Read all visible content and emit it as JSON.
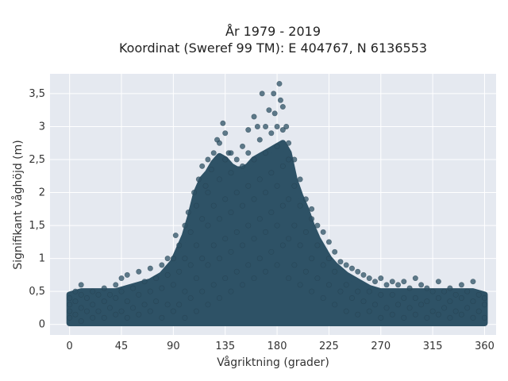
{
  "chart_data": {
    "type": "scatter",
    "title_lines": [
      "År 1979 - 2019",
      "Koordinat (Sweref 99 TM): E 404767, N 6136553"
    ],
    "xlabel": "Vågriktning (grader)",
    "ylabel": "Signifikant våghöjd (m)",
    "xlim": [
      -17,
      370
    ],
    "ylim": [
      -0.16,
      3.8
    ],
    "x_ticks": [
      0,
      45,
      90,
      135,
      180,
      225,
      270,
      315,
      360
    ],
    "x_tick_labels": [
      "0",
      "45",
      "90",
      "135",
      "180",
      "225",
      "270",
      "315",
      "360"
    ],
    "y_ticks": [
      0,
      0.5,
      1,
      1.5,
      2,
      2.5,
      3,
      3.5
    ],
    "y_tick_labels": [
      "0",
      "0,5",
      "1",
      "1,5",
      "2",
      "2,5",
      "3",
      "3,5"
    ],
    "grid": true,
    "legend": "none",
    "marker_color": "#2e5266",
    "plot_background": "#e5e9f0",
    "series": [
      {
        "points": [
          [
            0,
            0.1
          ],
          [
            0,
            0.2
          ],
          [
            0,
            0.3
          ],
          [
            0,
            0.4
          ],
          [
            5,
            0.15
          ],
          [
            5,
            0.35
          ],
          [
            5,
            0.5
          ],
          [
            10,
            0.05
          ],
          [
            10,
            0.25
          ],
          [
            10,
            0.45
          ],
          [
            10,
            0.6
          ],
          [
            15,
            0.2
          ],
          [
            15,
            0.4
          ],
          [
            20,
            0.1
          ],
          [
            20,
            0.3
          ],
          [
            20,
            0.5
          ],
          [
            25,
            0.2
          ],
          [
            25,
            0.45
          ],
          [
            30,
            0.1
          ],
          [
            30,
            0.35
          ],
          [
            30,
            0.55
          ],
          [
            35,
            0.25
          ],
          [
            35,
            0.45
          ],
          [
            40,
            0.15
          ],
          [
            40,
            0.4
          ],
          [
            40,
            0.6
          ],
          [
            45,
            0.2
          ],
          [
            45,
            0.5
          ],
          [
            45,
            0.7
          ],
          [
            50,
            0.1
          ],
          [
            50,
            0.35
          ],
          [
            50,
            0.75
          ],
          [
            55,
            0.25
          ],
          [
            55,
            0.55
          ],
          [
            60,
            0.15
          ],
          [
            60,
            0.45
          ],
          [
            60,
            0.8
          ],
          [
            65,
            0.3
          ],
          [
            65,
            0.65
          ],
          [
            70,
            0.2
          ],
          [
            70,
            0.5
          ],
          [
            70,
            0.85
          ],
          [
            75,
            0.35
          ],
          [
            75,
            0.7
          ],
          [
            80,
            0.1
          ],
          [
            80,
            0.55
          ],
          [
            80,
            0.9
          ],
          [
            85,
            0.3
          ],
          [
            85,
            0.75
          ],
          [
            85,
            1.0
          ],
          [
            90,
            0.2
          ],
          [
            90,
            0.6
          ],
          [
            90,
            1.0
          ],
          [
            92,
            1.35
          ],
          [
            95,
            0.3
          ],
          [
            95,
            0.8
          ],
          [
            95,
            1.2
          ],
          [
            100,
            0.1
          ],
          [
            100,
            0.5
          ],
          [
            100,
            1.0
          ],
          [
            100,
            1.5
          ],
          [
            103,
            1.7
          ],
          [
            105,
            0.4
          ],
          [
            105,
            0.9
          ],
          [
            105,
            1.4
          ],
          [
            108,
            2.0
          ],
          [
            110,
            0.2
          ],
          [
            110,
            0.7
          ],
          [
            110,
            1.2
          ],
          [
            110,
            1.8
          ],
          [
            112,
            2.2
          ],
          [
            115,
            0.5
          ],
          [
            115,
            1.0
          ],
          [
            115,
            1.6
          ],
          [
            115,
            2.4
          ],
          [
            118,
            2.1
          ],
          [
            120,
            0.3
          ],
          [
            120,
            0.9
          ],
          [
            120,
            1.5
          ],
          [
            120,
            2.0
          ],
          [
            120,
            2.5
          ],
          [
            123,
            2.35
          ],
          [
            125,
            0.6
          ],
          [
            125,
            1.2
          ],
          [
            125,
            1.8
          ],
          [
            125,
            2.6
          ],
          [
            128,
            2.8
          ],
          [
            130,
            0.4
          ],
          [
            130,
            1.0
          ],
          [
            130,
            1.6
          ],
          [
            130,
            2.2
          ],
          [
            130,
            2.75
          ],
          [
            133,
            3.05
          ],
          [
            135,
            0.7
          ],
          [
            135,
            1.3
          ],
          [
            135,
            1.9
          ],
          [
            135,
            2.5
          ],
          [
            135,
            2.9
          ],
          [
            138,
            2.6
          ],
          [
            140,
            0.5
          ],
          [
            140,
            1.1
          ],
          [
            140,
            1.7
          ],
          [
            140,
            2.3
          ],
          [
            140,
            2.6
          ],
          [
            145,
            0.8
          ],
          [
            145,
            1.4
          ],
          [
            145,
            2.0
          ],
          [
            145,
            2.5
          ],
          [
            150,
            0.6
          ],
          [
            150,
            1.2
          ],
          [
            150,
            1.8
          ],
          [
            150,
            2.4
          ],
          [
            150,
            2.7
          ],
          [
            155,
            0.9
          ],
          [
            155,
            1.5
          ],
          [
            155,
            2.1
          ],
          [
            155,
            2.6
          ],
          [
            155,
            2.95
          ],
          [
            160,
            0.7
          ],
          [
            160,
            1.3
          ],
          [
            160,
            1.9
          ],
          [
            160,
            2.5
          ],
          [
            160,
            3.15
          ],
          [
            163,
            3.0
          ],
          [
            165,
            1.0
          ],
          [
            165,
            1.6
          ],
          [
            165,
            2.2
          ],
          [
            165,
            2.8
          ],
          [
            167,
            3.5
          ],
          [
            170,
            0.8
          ],
          [
            170,
            1.4
          ],
          [
            170,
            2.0
          ],
          [
            170,
            2.6
          ],
          [
            170,
            3.0
          ],
          [
            173,
            3.25
          ],
          [
            175,
            1.1
          ],
          [
            175,
            1.7
          ],
          [
            175,
            2.3
          ],
          [
            175,
            2.9
          ],
          [
            177,
            3.5
          ],
          [
            178,
            3.2
          ],
          [
            180,
            0.9
          ],
          [
            180,
            1.5
          ],
          [
            180,
            2.1
          ],
          [
            180,
            2.7
          ],
          [
            180,
            3.0
          ],
          [
            182,
            3.65
          ],
          [
            183,
            3.4
          ],
          [
            185,
            1.2
          ],
          [
            185,
            1.8
          ],
          [
            185,
            2.4
          ],
          [
            185,
            2.95
          ],
          [
            185,
            3.3
          ],
          [
            188,
            3.0
          ],
          [
            190,
            0.7
          ],
          [
            190,
            1.3
          ],
          [
            190,
            1.9
          ],
          [
            190,
            2.5
          ],
          [
            190,
            2.75
          ],
          [
            195,
            0.9
          ],
          [
            195,
            1.5
          ],
          [
            195,
            2.1
          ],
          [
            195,
            2.5
          ],
          [
            200,
            0.6
          ],
          [
            200,
            1.2
          ],
          [
            200,
            1.8
          ],
          [
            200,
            2.2
          ],
          [
            205,
            0.8
          ],
          [
            205,
            1.4
          ],
          [
            205,
            1.9
          ],
          [
            210,
            0.5
          ],
          [
            210,
            1.0
          ],
          [
            210,
            1.6
          ],
          [
            210,
            1.75
          ],
          [
            215,
            0.7
          ],
          [
            215,
            1.2
          ],
          [
            215,
            1.5
          ],
          [
            220,
            0.4
          ],
          [
            220,
            0.9
          ],
          [
            220,
            1.4
          ],
          [
            225,
            0.6
          ],
          [
            225,
            1.0
          ],
          [
            225,
            1.25
          ],
          [
            230,
            0.3
          ],
          [
            230,
            0.8
          ],
          [
            230,
            1.1
          ],
          [
            235,
            0.5
          ],
          [
            235,
            0.95
          ],
          [
            240,
            0.2
          ],
          [
            240,
            0.6
          ],
          [
            240,
            0.9
          ],
          [
            245,
            0.4
          ],
          [
            245,
            0.85
          ],
          [
            250,
            0.15
          ],
          [
            250,
            0.5
          ],
          [
            250,
            0.8
          ],
          [
            255,
            0.35
          ],
          [
            255,
            0.75
          ],
          [
            260,
            0.2
          ],
          [
            260,
            0.5
          ],
          [
            260,
            0.7
          ],
          [
            265,
            0.3
          ],
          [
            265,
            0.65
          ],
          [
            270,
            0.1
          ],
          [
            270,
            0.45
          ],
          [
            270,
            0.7
          ],
          [
            275,
            0.25
          ],
          [
            275,
            0.6
          ],
          [
            280,
            0.15
          ],
          [
            280,
            0.45
          ],
          [
            280,
            0.65
          ],
          [
            285,
            0.3
          ],
          [
            285,
            0.6
          ],
          [
            290,
            0.1
          ],
          [
            290,
            0.4
          ],
          [
            290,
            0.65
          ],
          [
            295,
            0.25
          ],
          [
            295,
            0.55
          ],
          [
            300,
            0.15
          ],
          [
            300,
            0.4
          ],
          [
            300,
            0.7
          ],
          [
            305,
            0.3
          ],
          [
            305,
            0.6
          ],
          [
            310,
            0.1
          ],
          [
            310,
            0.35
          ],
          [
            310,
            0.55
          ],
          [
            315,
            0.2
          ],
          [
            315,
            0.5
          ],
          [
            320,
            0.15
          ],
          [
            320,
            0.4
          ],
          [
            320,
            0.65
          ],
          [
            325,
            0.25
          ],
          [
            325,
            0.5
          ],
          [
            330,
            0.1
          ],
          [
            330,
            0.35
          ],
          [
            330,
            0.55
          ],
          [
            335,
            0.2
          ],
          [
            335,
            0.45
          ],
          [
            340,
            0.15
          ],
          [
            340,
            0.4
          ],
          [
            340,
            0.6
          ],
          [
            345,
            0.25
          ],
          [
            345,
            0.5
          ],
          [
            350,
            0.1
          ],
          [
            350,
            0.35
          ],
          [
            350,
            0.65
          ],
          [
            355,
            0.2
          ],
          [
            355,
            0.45
          ],
          [
            360,
            0.1
          ],
          [
            360,
            0.3
          ],
          [
            360,
            0.4
          ]
        ],
        "envelope": [
          [
            0,
            0.02,
            0.45
          ],
          [
            10,
            0.02,
            0.5
          ],
          [
            20,
            0.02,
            0.5
          ],
          [
            30,
            0.02,
            0.5
          ],
          [
            40,
            0.02,
            0.5
          ],
          [
            50,
            0.02,
            0.55
          ],
          [
            60,
            0.02,
            0.6
          ],
          [
            70,
            0.02,
            0.65
          ],
          [
            80,
            0.02,
            0.75
          ],
          [
            90,
            0.02,
            0.95
          ],
          [
            100,
            0.02,
            1.35
          ],
          [
            105,
            0.02,
            1.65
          ],
          [
            110,
            0.02,
            2.0
          ],
          [
            115,
            0.02,
            2.2
          ],
          [
            120,
            0.02,
            2.3
          ],
          [
            125,
            0.02,
            2.45
          ],
          [
            130,
            0.02,
            2.55
          ],
          [
            135,
            0.02,
            2.5
          ],
          [
            140,
            0.02,
            2.4
          ],
          [
            145,
            0.02,
            2.35
          ],
          [
            150,
            0.02,
            2.35
          ],
          [
            155,
            0.02,
            2.4
          ],
          [
            160,
            0.02,
            2.5
          ],
          [
            165,
            0.02,
            2.55
          ],
          [
            170,
            0.02,
            2.6
          ],
          [
            175,
            0.02,
            2.65
          ],
          [
            180,
            0.02,
            2.7
          ],
          [
            185,
            0.02,
            2.75
          ],
          [
            190,
            0.02,
            2.6
          ],
          [
            195,
            0.02,
            2.2
          ],
          [
            200,
            0.02,
            1.95
          ],
          [
            205,
            0.02,
            1.75
          ],
          [
            210,
            0.02,
            1.5
          ],
          [
            215,
            0.02,
            1.3
          ],
          [
            220,
            0.02,
            1.15
          ],
          [
            225,
            0.02,
            1.0
          ],
          [
            230,
            0.02,
            0.9
          ],
          [
            240,
            0.02,
            0.75
          ],
          [
            250,
            0.02,
            0.65
          ],
          [
            260,
            0.02,
            0.55
          ],
          [
            270,
            0.02,
            0.5
          ],
          [
            280,
            0.02,
            0.5
          ],
          [
            290,
            0.02,
            0.5
          ],
          [
            300,
            0.02,
            0.5
          ],
          [
            310,
            0.02,
            0.5
          ],
          [
            320,
            0.02,
            0.5
          ],
          [
            330,
            0.02,
            0.5
          ],
          [
            340,
            0.02,
            0.5
          ],
          [
            350,
            0.02,
            0.5
          ],
          [
            360,
            0.02,
            0.45
          ]
        ]
      }
    ]
  }
}
